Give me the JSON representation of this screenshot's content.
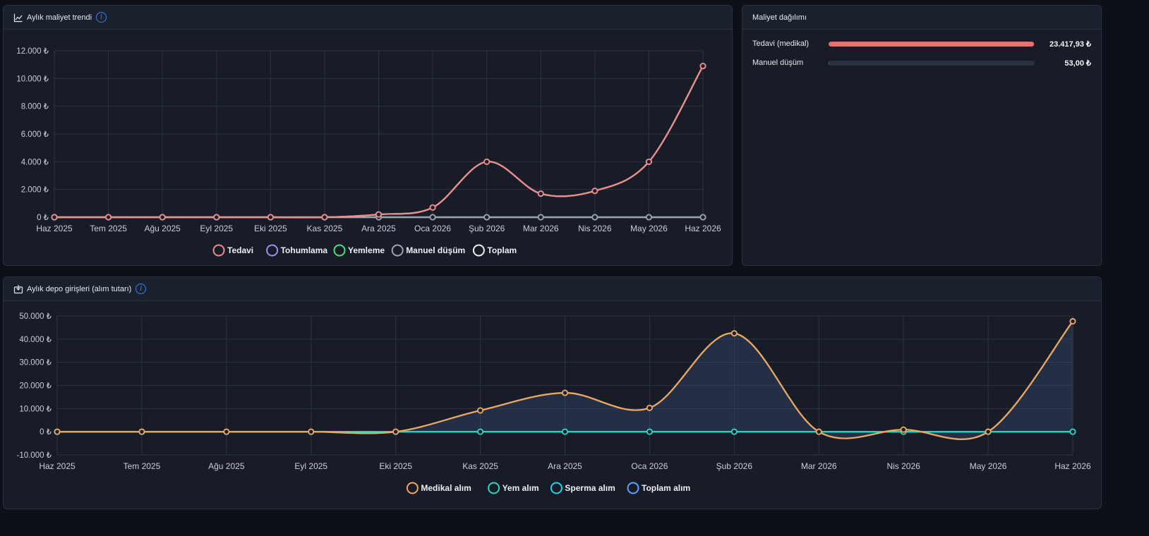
{
  "panels": {
    "trend_title": "Aylık maliyet trendi",
    "distribution_title": "Maliyet dağılımı",
    "depot_title": "Aylık depo girişleri (alım tutarı)",
    "info_symbol": "i"
  },
  "distribution": [
    {
      "label": "Tedavi (medikal)",
      "value": "23.417,93 ₺",
      "share": 0.9977,
      "color": "#f26d6d"
    },
    {
      "label": "Manuel düşüm",
      "value": "53,00 ₺",
      "share": 0.0023,
      "color": "#6b7280"
    }
  ],
  "chart_data": [
    {
      "type": "line",
      "categories": [
        "Haz 2025",
        "Tem 2025",
        "Ağu 2025",
        "Eyl 2025",
        "Eki 2025",
        "Kas 2025",
        "Ara 2025",
        "Oca 2026",
        "Şub 2026",
        "Mar 2026",
        "Nis 2026",
        "May 2026",
        "Haz 2026"
      ],
      "yticks": [
        "12.000 ₺",
        "10.000 ₺",
        "8.000 ₺",
        "6.000 ₺",
        "4.000 ₺",
        "2.000 ₺",
        "0 ₺"
      ],
      "ylim": [
        0,
        12000
      ],
      "legend_position": "bottom",
      "grid": true,
      "series": [
        {
          "name": "Tedavi",
          "color": "#f08b8b",
          "values": [
            0,
            0,
            0,
            0,
            0,
            0,
            200,
            700,
            4000,
            1700,
            1900,
            4000,
            10900
          ]
        },
        {
          "name": "Tohumlama",
          "color": "#a78bfa",
          "values": [
            0,
            0,
            0,
            0,
            0,
            0,
            0,
            0,
            0,
            0,
            0,
            0,
            0
          ]
        },
        {
          "name": "Yemleme",
          "color": "#4ade80",
          "values": [
            0,
            0,
            0,
            0,
            0,
            0,
            0,
            0,
            0,
            0,
            0,
            0,
            0
          ]
        },
        {
          "name": "Manuel düşüm",
          "color": "#9ca3af",
          "values": [
            0,
            0,
            0,
            0,
            0,
            0,
            0,
            0,
            0,
            0,
            0,
            0,
            0
          ]
        },
        {
          "name": "Toplam",
          "color": "#f0f0f0",
          "values": [
            0,
            0,
            0,
            0,
            0,
            0,
            200,
            700,
            4000,
            1700,
            1900,
            4000,
            10900
          ]
        }
      ]
    },
    {
      "type": "area",
      "categories": [
        "Haz 2025",
        "Tem 2025",
        "Ağu 2025",
        "Eyl 2025",
        "Eki 2025",
        "Kas 2025",
        "Ara 2025",
        "Oca 2026",
        "Şub 2026",
        "Mar 2026",
        "Nis 2026",
        "May 2026",
        "Haz 2026"
      ],
      "yticks": [
        "50.000 ₺",
        "40.000 ₺",
        "30.000 ₺",
        "20.000 ₺",
        "10.000 ₺",
        "0 ₺",
        "-10.000 ₺"
      ],
      "ylim": [
        -10000,
        50000
      ],
      "legend_position": "bottom",
      "grid": true,
      "series": [
        {
          "name": "Medikal alım",
          "color": "#f2a65a",
          "values": [
            0,
            0,
            0,
            0,
            0,
            9200,
            16800,
            10300,
            42500,
            0,
            900,
            0,
            47700
          ]
        },
        {
          "name": "Yem alım",
          "color": "#2dd4bf",
          "values": [
            0,
            0,
            0,
            0,
            0,
            0,
            0,
            0,
            0,
            0,
            0,
            0,
            0
          ]
        },
        {
          "name": "Sperma alım",
          "color": "#22d3ee",
          "values": [
            0,
            0,
            0,
            0,
            0,
            0,
            0,
            0,
            0,
            0,
            0,
            0,
            0
          ]
        },
        {
          "name": "Toplam alım",
          "color": "#60a5fa",
          "values": [
            0,
            0,
            0,
            0,
            0,
            9200,
            16800,
            10300,
            42500,
            0,
            900,
            0,
            47700
          ]
        }
      ]
    }
  ]
}
